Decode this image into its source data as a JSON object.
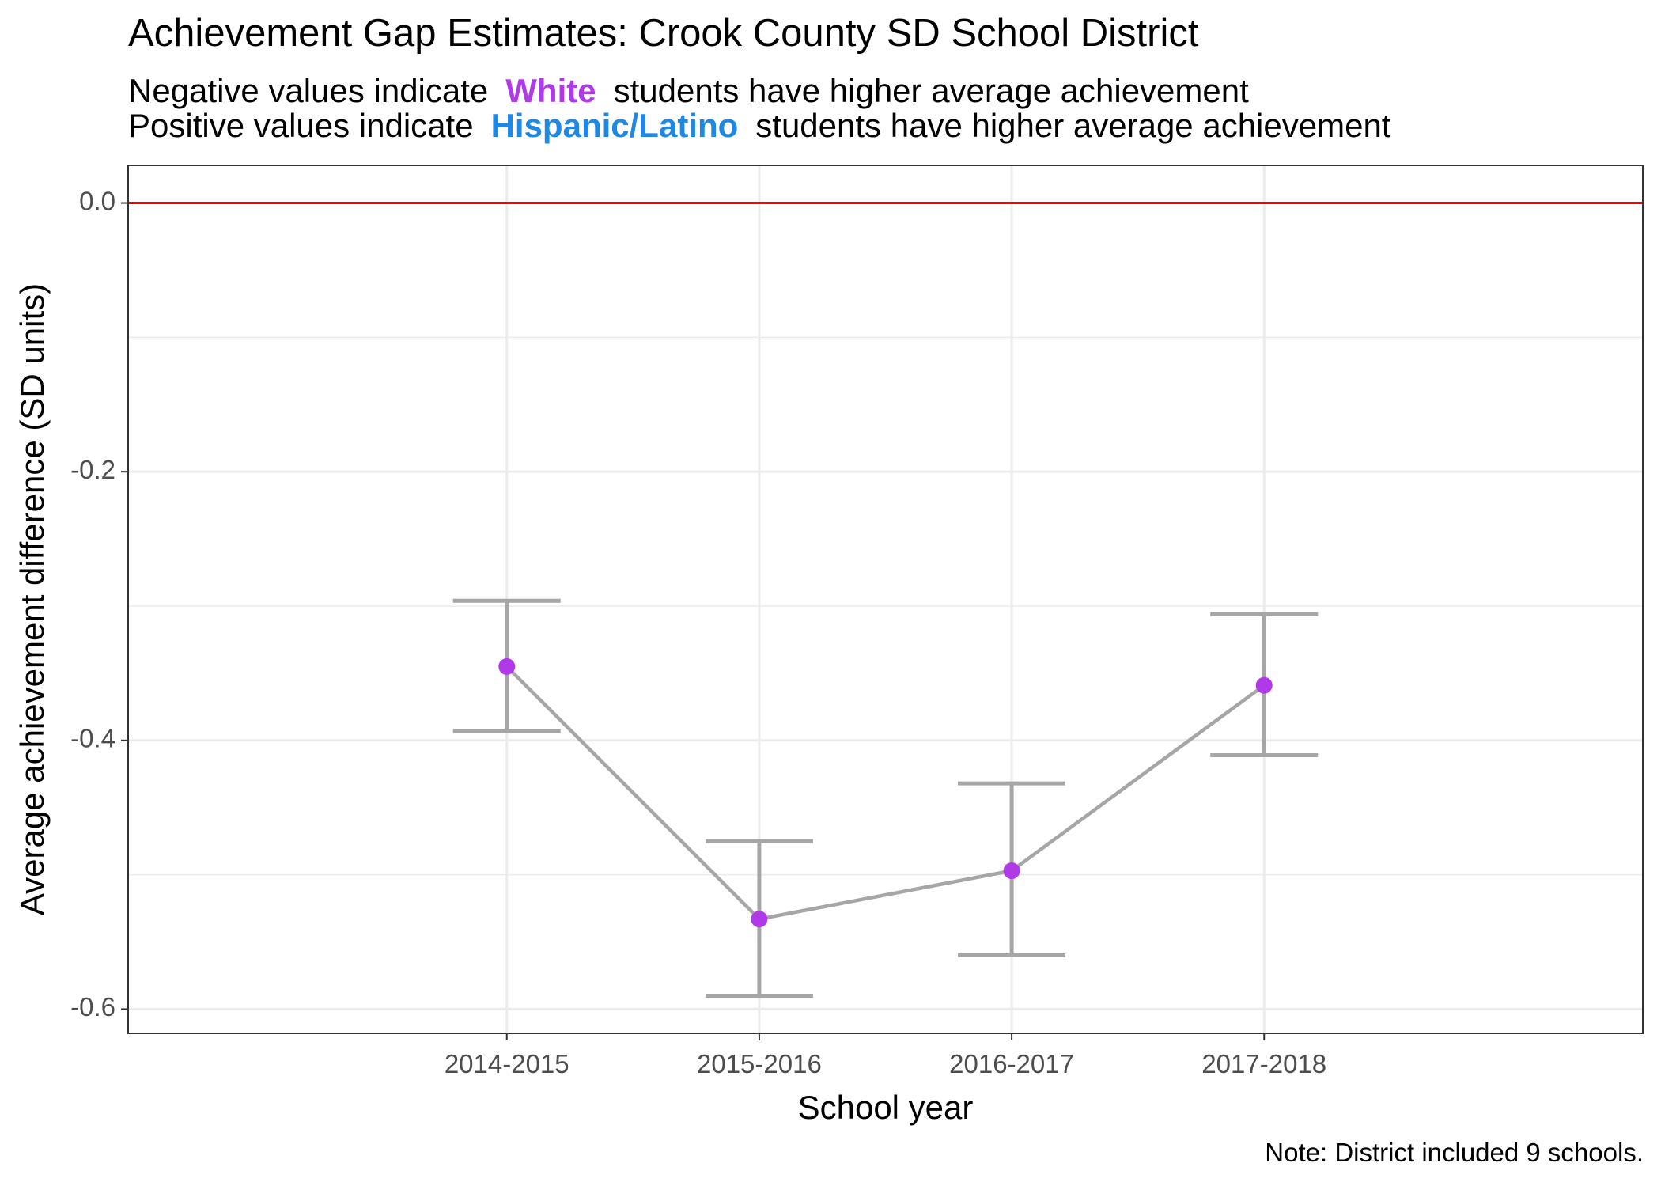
{
  "header": {
    "title": "Achievement Gap Estimates: Crook County SD School District",
    "sub1_before": "Negative values indicate",
    "sub1_highlight": "White",
    "sub1_after": "students have higher average achievement",
    "sub2_before": "Positive values indicate",
    "sub2_highlight": "Hispanic/Latino",
    "sub2_after": "students have higher average achievement"
  },
  "footer": {
    "note": "Note: District included 9 schools."
  },
  "colors": {
    "white_highlight": "#b03ae8",
    "hispanic_highlight": "#1e88e5",
    "point": "#b03ae8",
    "line": "#a6a6a6",
    "reference_line": "#ff0000",
    "grid": "#ebebeb"
  },
  "chart_data": {
    "type": "line",
    "title": "Achievement Gap Estimates: Crook County SD School District",
    "xlabel": "School year",
    "ylabel": "Average achievement difference (SD units)",
    "categories": [
      "2014-2015",
      "2015-2016",
      "2016-2017",
      "2017-2018"
    ],
    "values": [
      -0.345,
      -0.533,
      -0.497,
      -0.359
    ],
    "error_low": [
      -0.393,
      -0.59,
      -0.56,
      -0.411
    ],
    "error_high": [
      -0.296,
      -0.475,
      -0.432,
      -0.306
    ],
    "ylim": [
      -0.618,
      0.028
    ],
    "yticks": [
      0.0,
      -0.2,
      -0.4,
      -0.6
    ],
    "ytick_labels": [
      "0.0",
      "-0.2",
      "-0.4",
      "-0.6"
    ],
    "reference_line": 0.0,
    "grid": true,
    "legend": "none"
  }
}
